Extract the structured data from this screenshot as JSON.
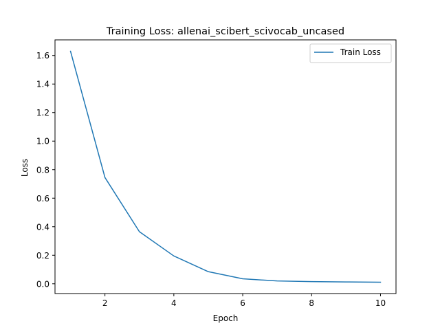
{
  "chart_data": {
    "type": "line",
    "title": "Training Loss: allenai_scibert_scivocab_uncased",
    "xlabel": "Epoch",
    "ylabel": "Loss",
    "xlim": [
      0.55,
      10.45
    ],
    "ylim": [
      -0.0685,
      1.7095
    ],
    "xticks": [
      2,
      4,
      6,
      8,
      10
    ],
    "xtick_labels": [
      "2",
      "4",
      "6",
      "8",
      "10"
    ],
    "yticks": [
      0.0,
      0.2,
      0.4,
      0.6,
      0.8,
      1.0,
      1.2,
      1.4,
      1.6
    ],
    "ytick_labels": [
      "0.0",
      "0.2",
      "0.4",
      "0.6",
      "0.8",
      "1.0",
      "1.2",
      "1.4",
      "1.6"
    ],
    "grid": false,
    "legend_position": "upper-right",
    "series": [
      {
        "name": "Train Loss",
        "color": "#1f77b4",
        "x": [
          1,
          2,
          3,
          4,
          5,
          6,
          7,
          8,
          9,
          10
        ],
        "y": [
          1.63,
          0.745,
          0.365,
          0.195,
          0.085,
          0.035,
          0.02,
          0.015,
          0.013,
          0.011
        ]
      }
    ]
  }
}
